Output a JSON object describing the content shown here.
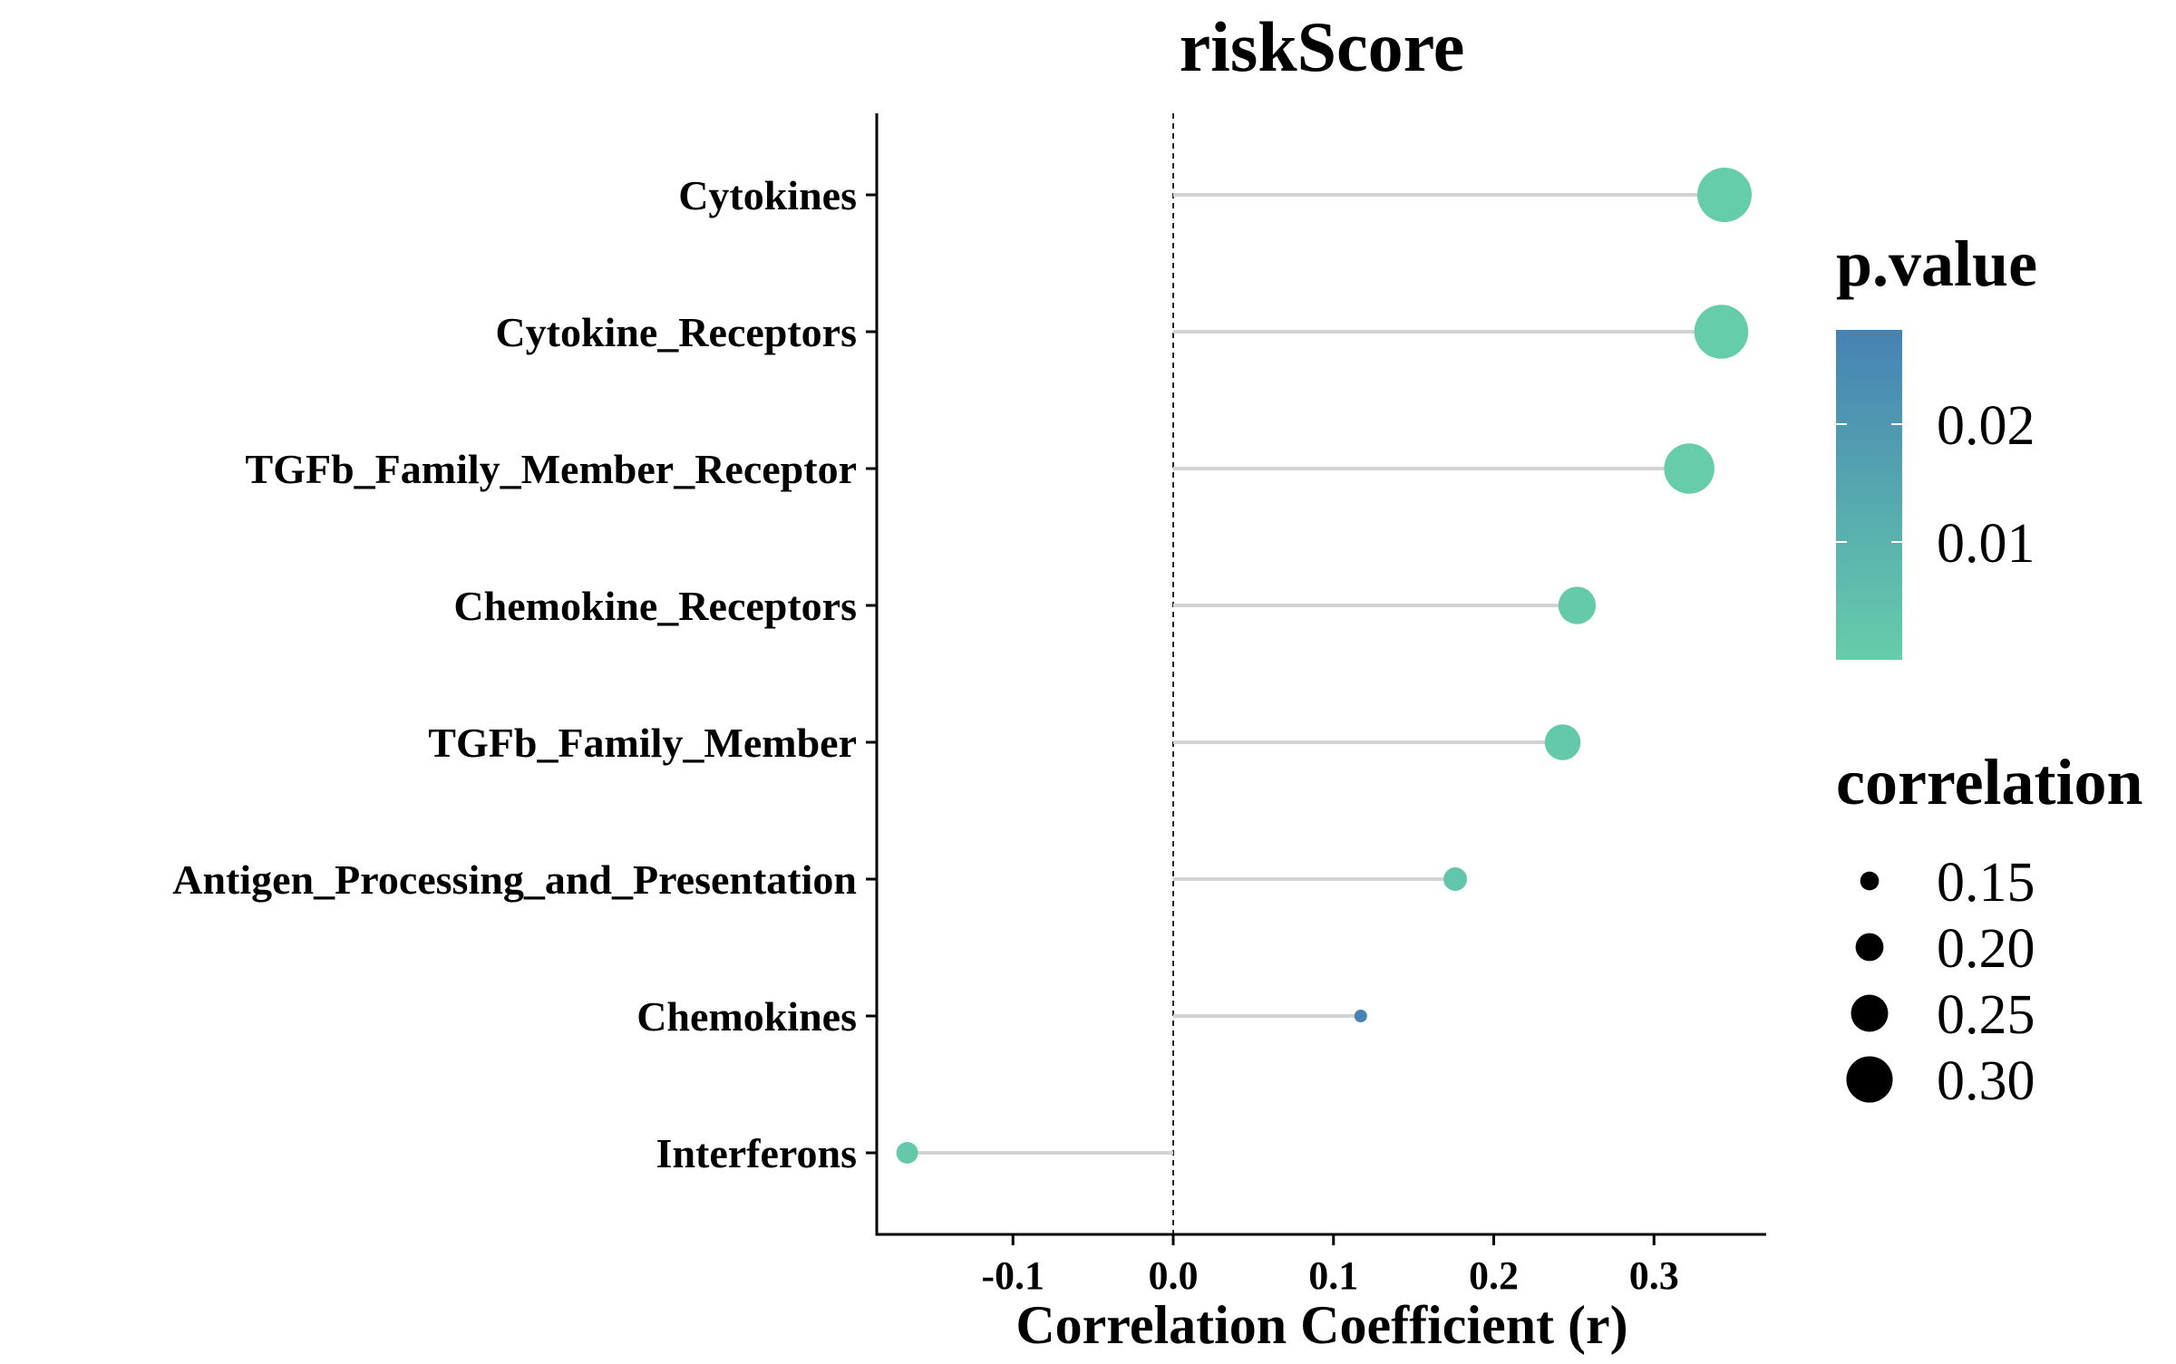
{
  "chart_data": {
    "type": "lollipop",
    "title": "riskScore",
    "xlabel": "Correlation Coefficient (r)",
    "ylabel": "",
    "xlim": [
      -0.185,
      0.37
    ],
    "x_ticks": [
      -0.1,
      0.0,
      0.1,
      0.2,
      0.3
    ],
    "x_tick_labels": [
      "-0.1",
      "0.0",
      "0.1",
      "0.2",
      "0.3"
    ],
    "reference_line": 0.0,
    "categories": [
      "Cytokines",
      "Cytokine_Receptors",
      "TGFb_Family_Member_Receptor",
      "Chemokine_Receptors",
      "TGFb_Family_Member",
      "Antigen_Processing_and_Presentation",
      "Chemokines",
      "Interferons"
    ],
    "correlation": [
      0.344,
      0.342,
      0.322,
      0.252,
      0.243,
      0.176,
      0.117,
      -0.166
    ],
    "p_value": [
      0.0001,
      0.0001,
      0.0002,
      0.001,
      0.0015,
      0.003,
      0.028,
      0.002
    ],
    "color_legend": {
      "title": "p.value",
      "low_color": "#66CDAA",
      "high_color": "#4682B4",
      "range": [
        0.0,
        0.028
      ],
      "ticks": [
        0.02,
        0.01
      ],
      "tick_labels": [
        "0.02",
        "0.01"
      ]
    },
    "size_legend": {
      "title": "correlation",
      "values": [
        0.15,
        0.2,
        0.25,
        0.3
      ],
      "labels": [
        "0.15",
        "0.20",
        "0.25",
        "0.30"
      ]
    },
    "segment_color": "#D3D3D3",
    "grid": false
  }
}
